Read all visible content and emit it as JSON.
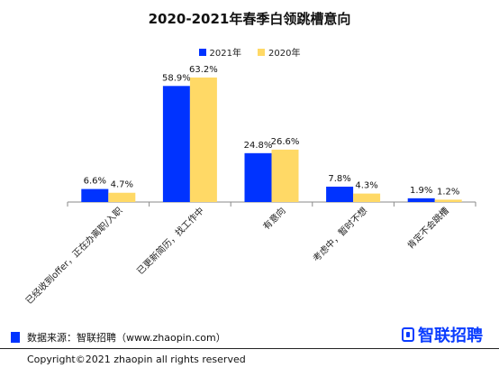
{
  "header": {
    "title": "2020-2021年春季白领跳槽意向"
  },
  "colors": {
    "series_2021": "#0033ff",
    "series_2020": "#ffd966",
    "axis": "#8a8a8a",
    "brand": "#0a3cff"
  },
  "chart_data": {
    "type": "bar",
    "title": "2020-2021年春季白领跳槽意向",
    "xlabel": "",
    "ylabel": "",
    "categories": [
      "已经收到offer，正在办离职/入职",
      "已更新简历，找工作中",
      "有意向",
      "考虑中，暂时不想",
      "肯定不会跳槽"
    ],
    "series": [
      {
        "name": "2021年",
        "values": [
          6.6,
          58.9,
          24.8,
          7.8,
          1.9
        ],
        "labels": [
          "6.6%",
          "58.9%",
          "24.8%",
          "7.8%",
          "1.9%"
        ]
      },
      {
        "name": "2020年",
        "values": [
          4.7,
          63.2,
          26.6,
          4.3,
          1.2
        ],
        "labels": [
          "4.7%",
          "63.2%",
          "26.6%",
          "4.3%",
          "1.2%"
        ]
      }
    ],
    "ylim": [
      0,
      65
    ],
    "grid": false,
    "legend": "top-center"
  },
  "footer": {
    "source": "数据来源：智联招聘（www.zhaopin.com）",
    "brand": "智联招聘",
    "brand_icon": "zhaopin-logo-icon",
    "copyright": "Copyright©2021 zhaopin all rights reserved"
  }
}
